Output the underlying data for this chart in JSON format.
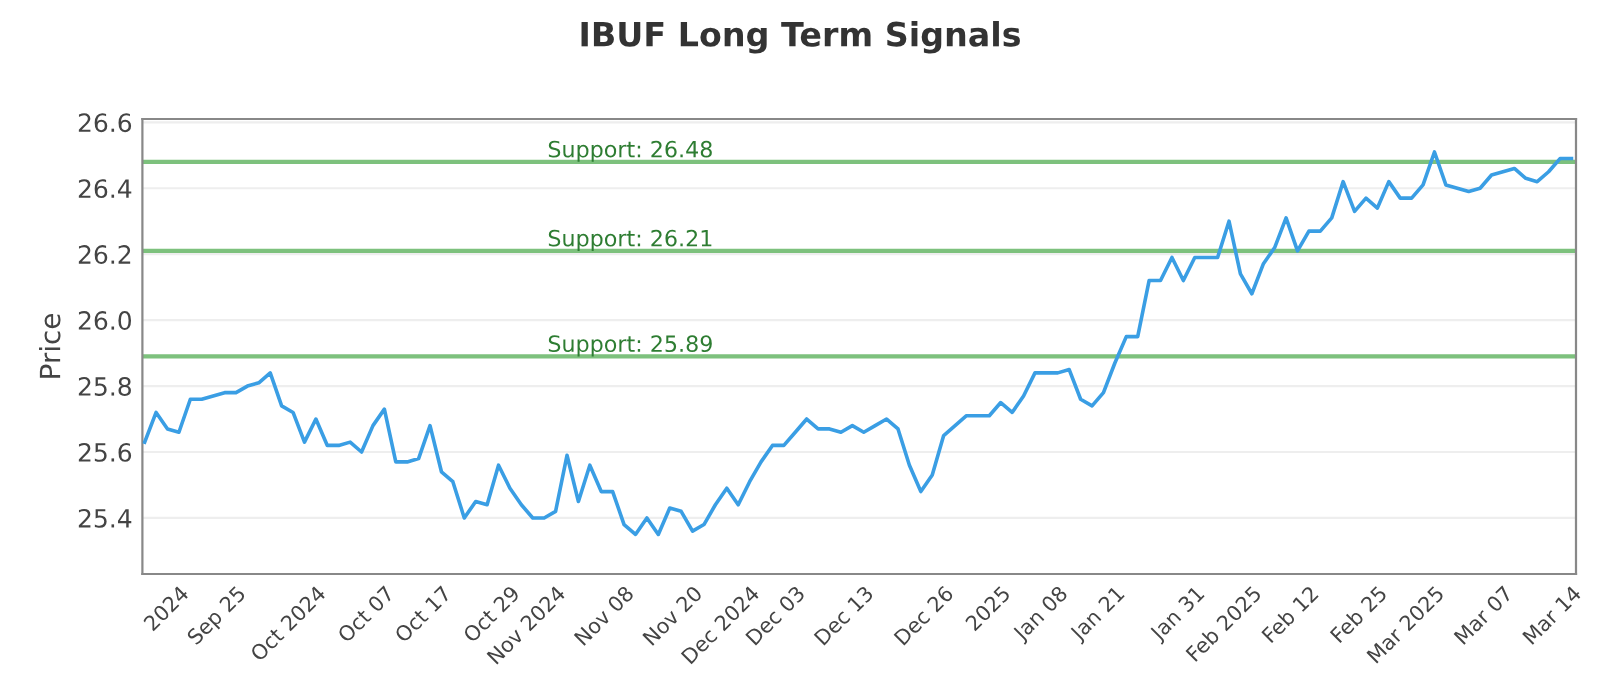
{
  "chart_data": {
    "type": "line",
    "title": "IBUF Long Term Signals",
    "ylabel": "Price",
    "categories": [
      null,
      null,
      null,
      "2024",
      null,
      null,
      null,
      null,
      "Sep 25",
      null,
      null,
      null,
      null,
      null,
      null,
      "Oct 2024",
      null,
      null,
      null,
      null,
      null,
      "Oct 07",
      null,
      null,
      null,
      null,
      "Oct 17",
      null,
      null,
      null,
      null,
      null,
      "Oct 29",
      null,
      null,
      null,
      "Nov 2024",
      null,
      null,
      null,
      null,
      null,
      "Nov 08",
      null,
      null,
      null,
      null,
      null,
      "Nov 20",
      null,
      null,
      null,
      null,
      "Dec 2024",
      null,
      null,
      null,
      "Dec 03",
      null,
      null,
      null,
      null,
      null,
      "Dec 13",
      null,
      null,
      null,
      null,
      null,
      null,
      "Dec 26",
      null,
      null,
      null,
      null,
      "2025",
      null,
      null,
      null,
      null,
      "Jan 08",
      null,
      null,
      null,
      null,
      "Jan 21",
      null,
      null,
      null,
      null,
      null,
      null,
      "Jan 31",
      null,
      null,
      null,
      null,
      "Feb 2025",
      null,
      null,
      null,
      null,
      "Feb 12",
      null,
      null,
      null,
      null,
      null,
      "Feb 25",
      null,
      null,
      null,
      null,
      "Mar 2025",
      null,
      null,
      null,
      null,
      null,
      "Mar 07",
      null,
      null,
      null,
      null,
      null,
      "Mar 14"
    ],
    "series": [
      {
        "color": "#3a9ee4",
        "values": [
          25.63,
          25.72,
          25.67,
          25.66,
          25.76,
          25.76,
          25.77,
          25.78,
          25.78,
          25.8,
          25.81,
          25.84,
          25.74,
          25.72,
          25.63,
          25.7,
          25.62,
          25.62,
          25.63,
          25.6,
          25.68,
          25.73,
          25.57,
          25.57,
          25.58,
          25.68,
          25.54,
          25.51,
          25.4,
          25.45,
          25.44,
          25.56,
          25.49,
          25.44,
          25.4,
          25.4,
          25.42,
          25.59,
          25.45,
          25.56,
          25.48,
          25.48,
          25.38,
          25.35,
          25.4,
          25.35,
          25.43,
          25.42,
          25.36,
          25.38,
          25.44,
          25.49,
          25.44,
          25.51,
          25.57,
          25.62,
          25.62,
          25.66,
          25.7,
          25.67,
          25.67,
          25.66,
          25.68,
          25.66,
          25.68,
          25.7,
          25.67,
          25.56,
          25.48,
          25.53,
          25.65,
          25.68,
          25.71,
          25.71,
          25.71,
          25.75,
          25.72,
          25.77,
          25.84,
          25.84,
          25.84,
          25.85,
          25.76,
          25.74,
          25.78,
          25.87,
          25.95,
          25.95,
          26.12,
          26.12,
          26.19,
          26.12,
          26.19,
          26.19,
          26.19,
          26.3,
          26.14,
          26.08,
          26.17,
          26.22,
          26.31,
          26.21,
          26.27,
          26.27,
          26.31,
          26.42,
          26.33,
          26.37,
          26.34,
          26.42,
          26.37,
          26.37,
          26.41,
          26.51,
          26.41,
          26.4,
          26.39,
          26.4,
          26.44,
          26.45,
          26.46,
          26.43,
          26.42,
          26.45,
          26.49,
          26.49
        ]
      }
    ],
    "ylim": [
      25.23,
      26.61
    ],
    "yticks": [
      25.4,
      25.6,
      25.8,
      {
        "value": 26.0,
        "label": "26.0"
      },
      26.2,
      26.4,
      26.6
    ],
    "grid": "y",
    "legend": false,
    "marker": "none",
    "line_style": "solid",
    "ref_lines": [
      {
        "axis": "y",
        "value": 26.48,
        "label": "Support: 26.48",
        "color": "#7dc17d"
      },
      {
        "axis": "y",
        "value": 26.21,
        "label": "Support: 26.21",
        "color": "#7dc17d"
      },
      {
        "axis": "y",
        "value": 25.89,
        "label": "Support: 25.89",
        "color": "#7dc17d"
      }
    ]
  }
}
